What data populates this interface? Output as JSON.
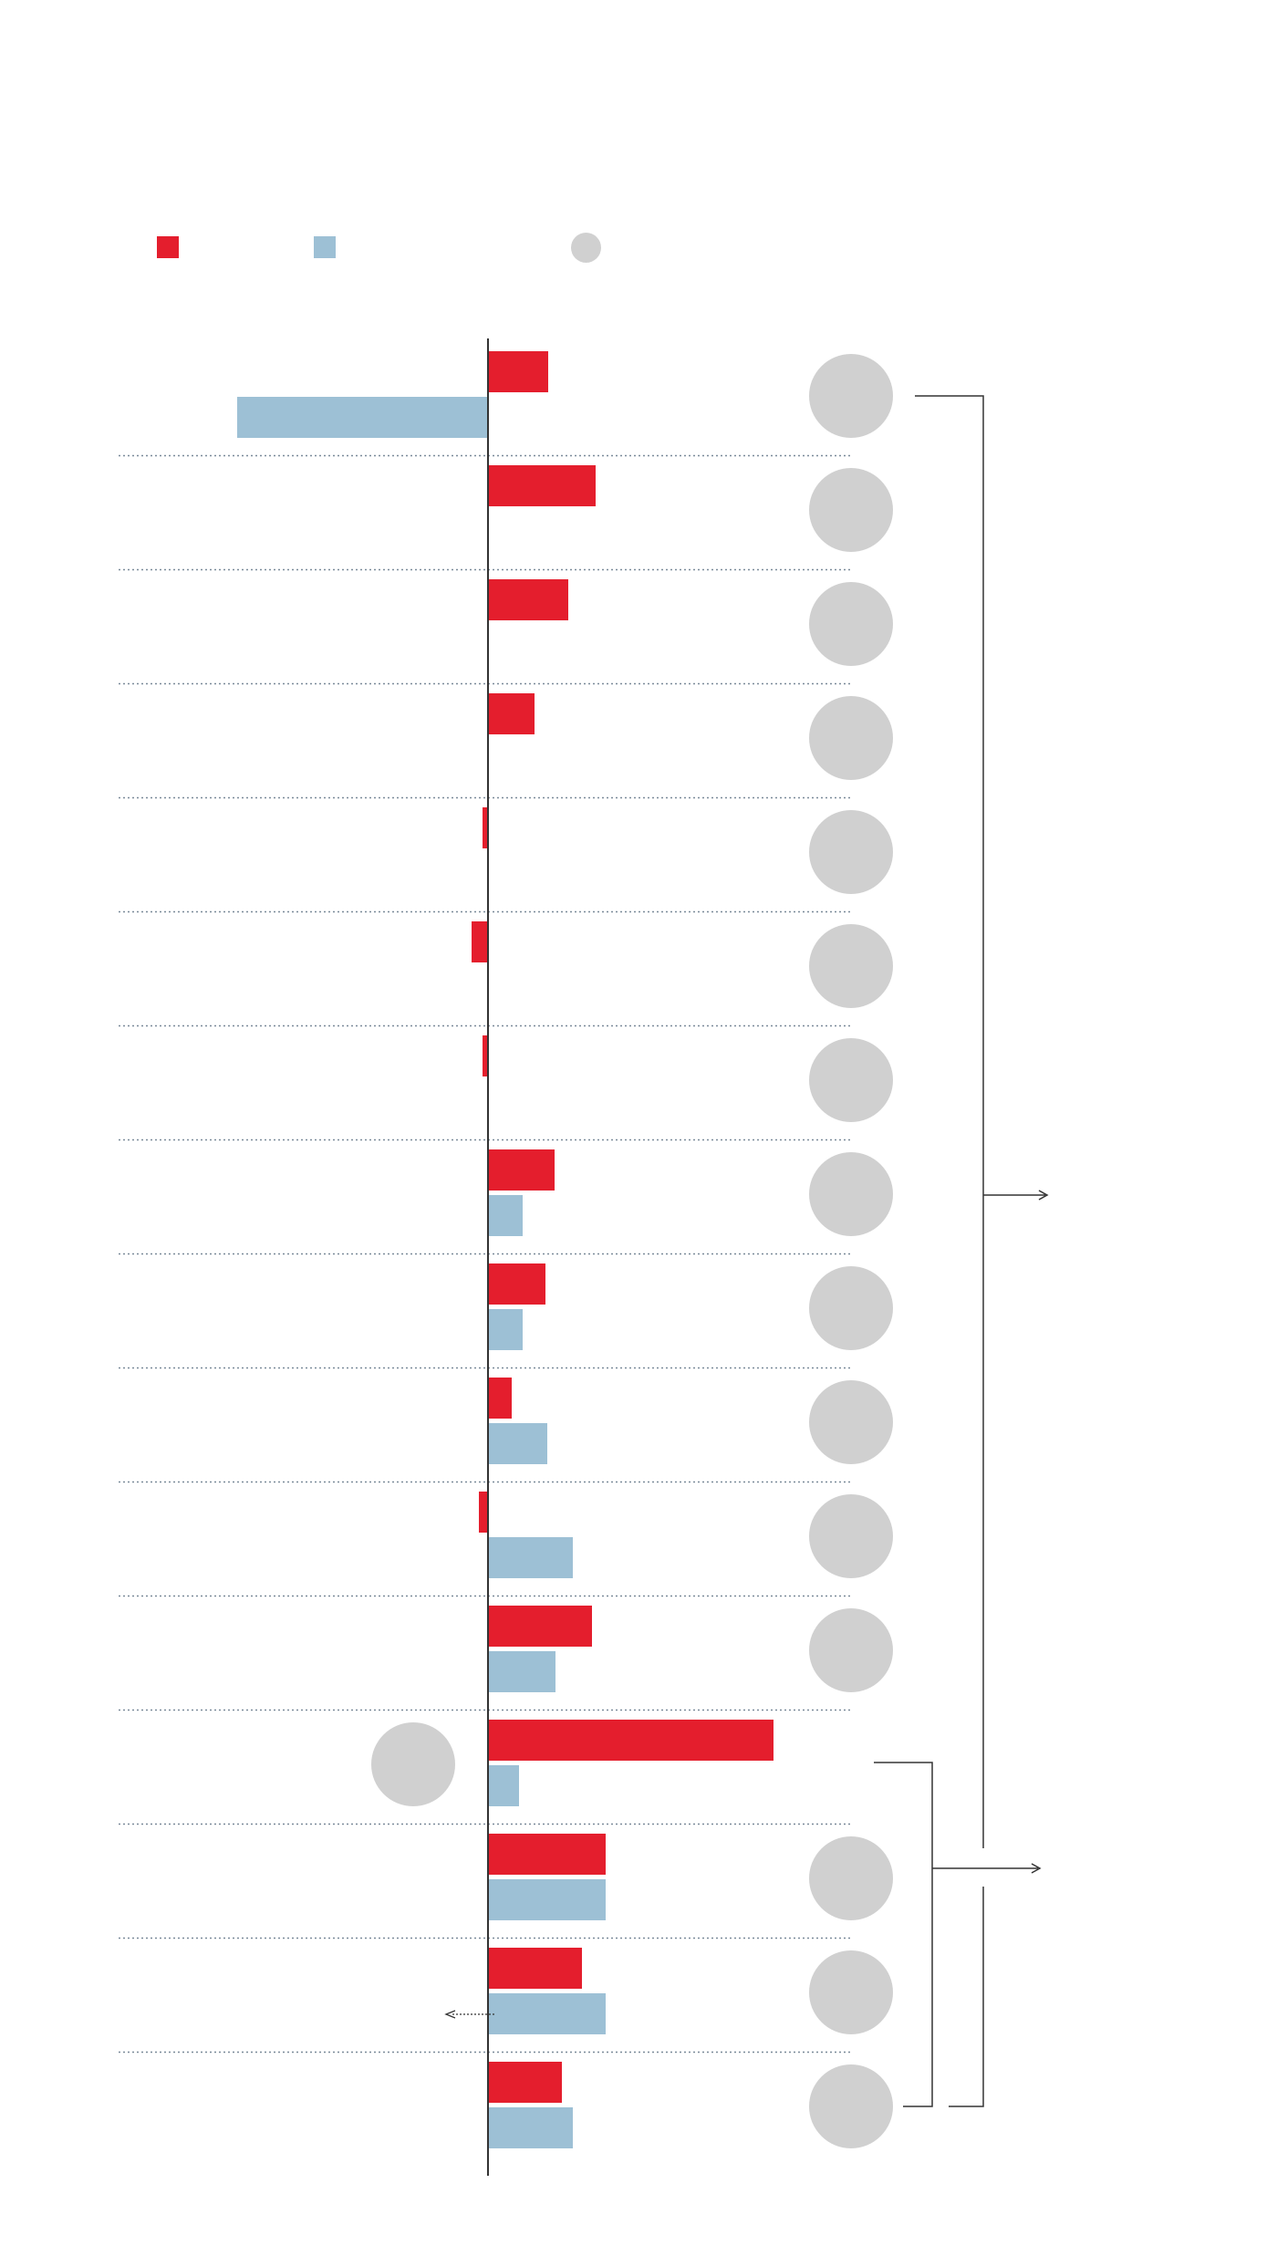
{
  "colors": {
    "series_a": "#e41e2d",
    "series_b": "#9dc0d5",
    "marker": "#d0d0d0",
    "axis": "#333333",
    "gridline": "#7a8a99",
    "bracket": "#333333"
  },
  "legend": {
    "items": [
      {
        "kind": "square",
        "color": "#e41e2d"
      },
      {
        "kind": "square",
        "color": "#9dc0d5"
      },
      {
        "kind": "circle",
        "color": "#d0d0d0"
      }
    ]
  },
  "chart_data": {
    "type": "bar",
    "orientation": "horizontal",
    "title": "",
    "xlabel": "",
    "ylabel": "",
    "xlim": [
      -28,
      32
    ],
    "grid": true,
    "legend_position": "top-left",
    "categories": [
      "",
      "",
      "",
      "",
      "",
      "",
      "",
      "",
      "",
      "",
      "",
      "",
      "",
      "",
      "",
      ""
    ],
    "series": [
      {
        "values": [
          6.6,
          11.8,
          8.8,
          5.1,
          -0.6,
          -1.8,
          -0.6,
          7.3,
          6.3,
          2.6,
          -1.0,
          11.4,
          31.3,
          12.9,
          10.3,
          8.1
        ]
      },
      {
        "values": [
          -27.5,
          null,
          null,
          null,
          null,
          null,
          null,
          3.8,
          3.8,
          6.5,
          9.3,
          7.4,
          3.4,
          12.9,
          12.9,
          9.3
        ]
      }
    ],
    "markers": [
      {
        "position": "right"
      },
      {
        "position": "right"
      },
      {
        "position": "right"
      },
      {
        "position": "right"
      },
      {
        "position": "right"
      },
      {
        "position": "right"
      },
      {
        "position": "right"
      },
      {
        "position": "right"
      },
      {
        "position": "right"
      },
      {
        "position": "right"
      },
      {
        "position": "right"
      },
      {
        "position": "right"
      },
      {
        "position": "left"
      },
      {
        "position": "right"
      },
      {
        "position": "right"
      },
      {
        "position": "right"
      }
    ],
    "brackets": [
      {
        "from_row": 0,
        "to_row": 15
      },
      {
        "from_row": 12,
        "to_row": 15
      }
    ]
  }
}
